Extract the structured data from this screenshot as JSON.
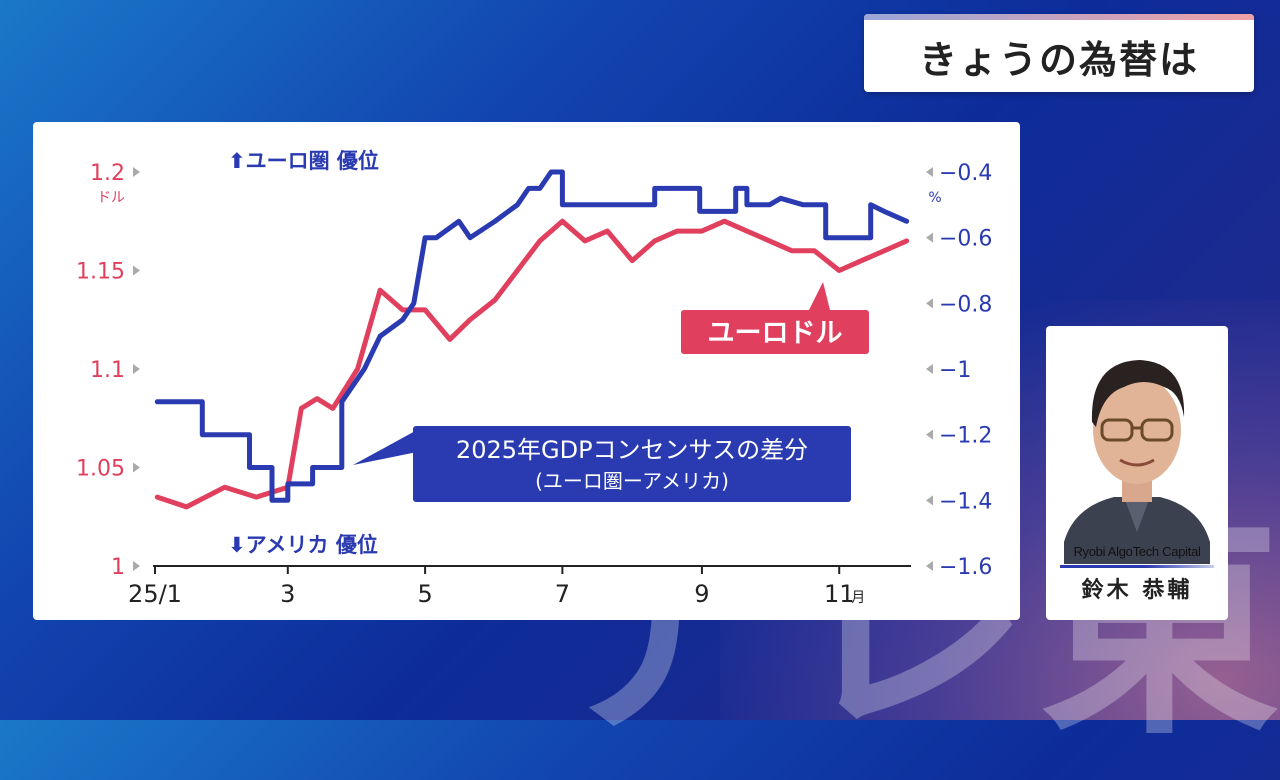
{
  "title": "きょうの為替は",
  "chart_data": {
    "type": "line",
    "left_axis": {
      "ticks": [
        "1.2",
        "1.15",
        "1.1",
        "1.05",
        "1"
      ],
      "unit": "ドル",
      "range": [
        1.0,
        1.2
      ],
      "color": "#e0405e"
    },
    "right_axis": {
      "ticks": [
        "−0.4",
        "−0.6",
        "−0.8",
        "−1",
        "−1.2",
        "−1.4",
        "−1.6"
      ],
      "unit": "%",
      "range": [
        -1.6,
        -0.4
      ],
      "color": "#2a3ab0"
    },
    "x_ticks": [
      "25/1",
      "3",
      "5",
      "7",
      "9",
      "11"
    ],
    "x_unit": "月",
    "top_label": "⬆ユーロ圏 優位",
    "bottom_label": "⬇アメリカ 優位",
    "series": [
      {
        "name": "ユーロドル",
        "axis": "left",
        "color": "#e0405e",
        "x": [
          "1/2",
          "1/15",
          "2/1",
          "2/15",
          "3/1",
          "3/7",
          "3/14",
          "3/21",
          "4/1",
          "4/11",
          "4/21",
          "5/1",
          "5/12",
          "5/21",
          "6/1",
          "6/11",
          "6/21",
          "7/1",
          "7/11",
          "7/21",
          "8/1",
          "8/11",
          "8/21",
          "9/1",
          "9/11",
          "9/21",
          "10/1",
          "10/11",
          "10/21",
          "11/1",
          "11/11",
          "11/21",
          "12/1"
        ],
        "values": [
          1.035,
          1.03,
          1.04,
          1.035,
          1.04,
          1.08,
          1.085,
          1.08,
          1.1,
          1.14,
          1.13,
          1.13,
          1.115,
          1.125,
          1.135,
          1.15,
          1.165,
          1.175,
          1.165,
          1.17,
          1.155,
          1.165,
          1.17,
          1.17,
          1.175,
          1.17,
          1.165,
          1.16,
          1.16,
          1.15,
          1.155,
          1.16,
          1.165
        ]
      },
      {
        "name": "2025年GDPコンセンサスの差分",
        "sublabel": "(ユーロ圏ーアメリカ)",
        "axis": "right",
        "color": "#2a3ab0",
        "x": [
          "1/2",
          "1/22",
          "1/22",
          "2/12",
          "2/12",
          "2/22",
          "2/22",
          "3/1",
          "3/1",
          "3/12",
          "3/12",
          "3/25",
          "3/25",
          "4/4",
          "4/11",
          "4/21",
          "4/26",
          "5/1",
          "5/6",
          "5/16",
          "5/21",
          "6/1",
          "6/11",
          "6/16",
          "6/21",
          "6/26",
          "7/1",
          "7/1",
          "8/11",
          "8/11",
          "8/31",
          "8/31",
          "9/16",
          "9/16",
          "9/21",
          "9/21",
          "10/1",
          "10/6",
          "10/16",
          "10/26",
          "10/26",
          "11/15",
          "11/15",
          "11/21",
          "12/1"
        ],
        "values": [
          -1.1,
          -1.1,
          -1.2,
          -1.2,
          -1.3,
          -1.3,
          -1.4,
          -1.4,
          -1.35,
          -1.35,
          -1.3,
          -1.3,
          -1.1,
          -1.0,
          -0.9,
          -0.85,
          -0.8,
          -0.6,
          -0.6,
          -0.55,
          -0.6,
          -0.55,
          -0.5,
          -0.45,
          -0.45,
          -0.4,
          -0.4,
          -0.5,
          -0.5,
          -0.45,
          -0.45,
          -0.52,
          -0.52,
          -0.45,
          -0.45,
          -0.5,
          -0.5,
          -0.48,
          -0.5,
          -0.5,
          -0.6,
          -0.6,
          -0.5,
          -0.52,
          -0.55
        ]
      }
    ]
  },
  "callouts": {
    "eurodollar": "ユーロドル",
    "gdp_line1": "2025年GDPコンセンサスの差分",
    "gdp_line2": "(ユーロ圏ーアメリカ)"
  },
  "commentator": {
    "company": "Ryobi AlgoTech Capital",
    "name": "鈴木 恭輔"
  },
  "watermark": "テレ東"
}
